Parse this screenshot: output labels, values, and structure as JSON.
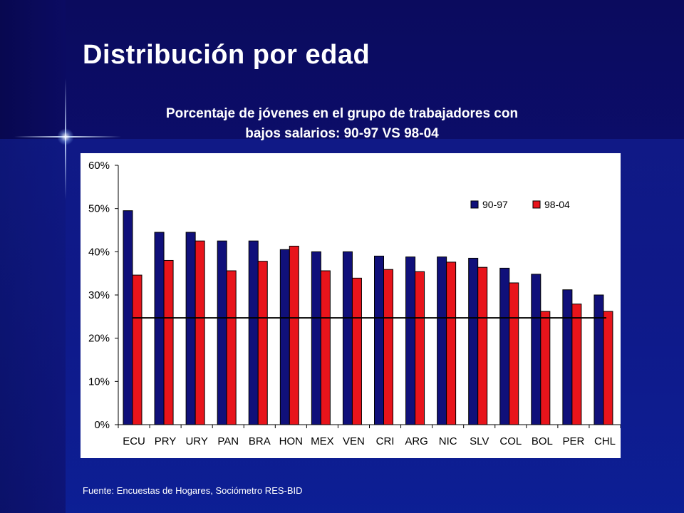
{
  "slide": {
    "title": "Distribución por edad",
    "source": "Fuente: Encuestas de Hogares, Sociómetro RES-BID"
  },
  "colors": {
    "series_90_97": "#10107a",
    "series_98_04": "#e8141b",
    "reference_line": "#000000"
  },
  "chart_data": {
    "type": "bar",
    "title_line1": "Porcentaje de jóvenes en el grupo de trabajadores con",
    "title_line2": "bajos salarios: 90-97 VS 98-04",
    "xlabel": "",
    "ylabel": "",
    "ylim": [
      0,
      60
    ],
    "yticks": [
      "0%",
      "10%",
      "20%",
      "30%",
      "40%",
      "50%",
      "60%"
    ],
    "categories": [
      "ECU",
      "PRY",
      "URY",
      "PAN",
      "BRA",
      "HON",
      "MEX",
      "VEN",
      "CRI",
      "ARG",
      "NIC",
      "SLV",
      "COL",
      "BOL",
      "PER",
      "CHL"
    ],
    "series": [
      {
        "name": "90-97",
        "values": [
          49.5,
          44.5,
          44.5,
          42.5,
          42.5,
          40.5,
          40,
          40,
          39,
          38.8,
          38.8,
          38.5,
          36.2,
          34.8,
          31.2,
          30
        ]
      },
      {
        "name": "98-04",
        "values": [
          34.6,
          38,
          42.5,
          35.6,
          37.8,
          41.3,
          35.6,
          33.9,
          35.9,
          35.4,
          37.6,
          36.4,
          32.8,
          26.2,
          27.9,
          26.2
        ]
      }
    ],
    "reference_line": 24.7,
    "legend_position": "top-right",
    "grid": false
  }
}
